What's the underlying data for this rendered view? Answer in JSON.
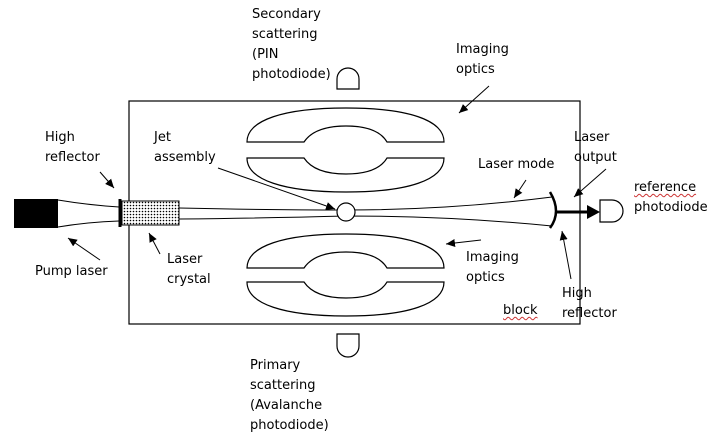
{
  "labels": {
    "secondary_scattering": [
      "Secondary",
      "scattering",
      "(PIN",
      "photodiode)"
    ],
    "imaging_optics_top": [
      "Imaging",
      "optics"
    ],
    "high_reflector_left": [
      "High",
      "reflector"
    ],
    "jet_assembly": [
      "Jet",
      "assembly"
    ],
    "laser_output": [
      "Laser",
      "output"
    ],
    "laser_mode": "Laser mode",
    "reference_photodiode": [
      "reference",
      "photodiode"
    ],
    "pump_laser": "Pump laser",
    "laser_crystal": [
      "Laser",
      "crystal"
    ],
    "imaging_optics_bottom": [
      "Imaging",
      "optics"
    ],
    "high_reflector_right": [
      "High",
      "reflector"
    ],
    "block": "block",
    "primary_scattering": [
      "Primary",
      "scattering",
      "(Avalanche",
      "photodiode)"
    ]
  }
}
